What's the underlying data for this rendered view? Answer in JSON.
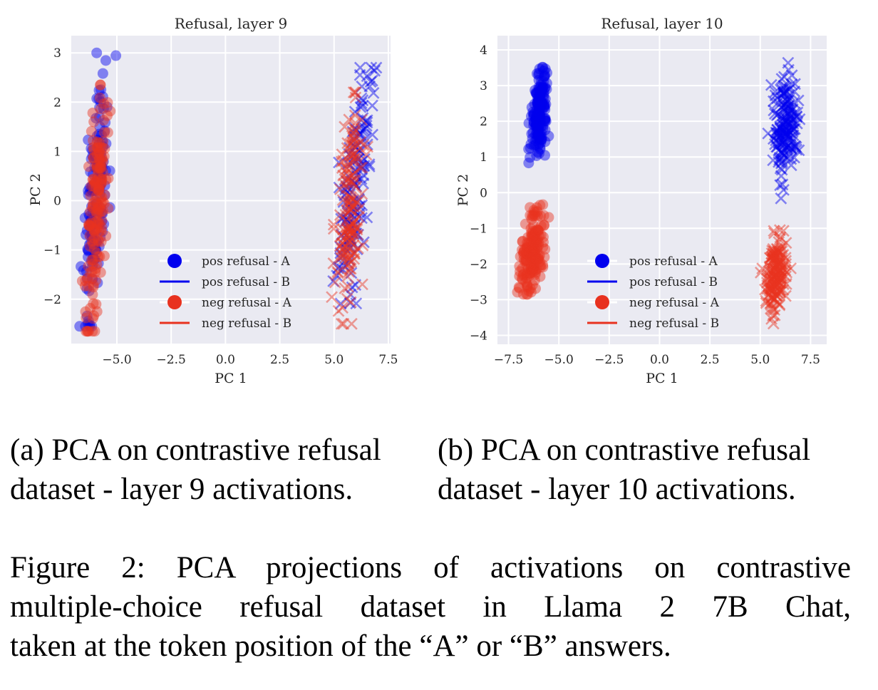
{
  "figure": {
    "subcaptions": [
      [
        "(a) PCA on contrastive refusal",
        "dataset - layer 9 activations."
      ],
      [
        "(b) PCA on contrastive refusal",
        "dataset - layer 10 activations."
      ]
    ],
    "caption_lines": [
      "Figure 2: PCA projections of activations on contrastive",
      "multiple-choice refusal dataset in Llama 2 7B Chat,",
      "taken at the token position of the “A” or “B” answers."
    ]
  },
  "colors": {
    "pos": "#0000ee",
    "neg": "#e8321f",
    "background": "#eaeaf2",
    "grid": "#ffffff"
  },
  "chart_data": [
    {
      "type": "scatter",
      "title": "Refusal, layer 9",
      "xlabel": "PC 1",
      "ylabel": "PC 2",
      "xlim": [
        -7.1,
        7.6
      ],
      "ylim": [
        -2.9,
        3.35
      ],
      "xticks": [
        -5.0,
        -2.5,
        0.0,
        2.5,
        5.0,
        7.5
      ],
      "xtick_labels": [
        "−5.0",
        "−2.5",
        "0.0",
        "2.5",
        "5.0",
        "7.5"
      ],
      "yticks": [
        -2,
        -1,
        0,
        1,
        2,
        3
      ],
      "ytick_labels": [
        "−2",
        "−1",
        "0",
        "1",
        "2",
        "3"
      ],
      "grid": true,
      "legend_position": "lower-center",
      "legend": [
        {
          "label": "pos refusal - A",
          "marker": "circle",
          "series": "pos"
        },
        {
          "label": "pos refusal - B",
          "marker": "line",
          "series": "pos"
        },
        {
          "label": "neg refusal - A",
          "marker": "circle",
          "series": "neg"
        },
        {
          "label": "neg refusal - B",
          "marker": "line",
          "series": "neg"
        }
      ],
      "series": [
        {
          "name": "pos refusal - A",
          "color": "pos",
          "marker": "o",
          "n": 150,
          "x_mean": -5.95,
          "x_sd": 0.22,
          "y_mean": 0.1,
          "y_sd": 1.25,
          "slope": 0.12,
          "y_min": -2.55,
          "y_max": 3.0,
          "seed": 11
        },
        {
          "name": "neg refusal - A",
          "color": "neg",
          "marker": "o",
          "n": 160,
          "x_mean": -5.9,
          "x_sd": 0.22,
          "y_mean": -0.05,
          "y_sd": 1.1,
          "slope": 0.12,
          "y_min": -2.65,
          "y_max": 2.35,
          "seed": 12
        },
        {
          "name": "pos refusal - B",
          "color": "pos",
          "marker": "x",
          "n": 150,
          "x_mean": 5.95,
          "x_sd": 0.3,
          "y_mean": 0.15,
          "y_sd": 1.15,
          "slope": 0.18,
          "y_min": -2.2,
          "y_max": 2.7,
          "seed": 13
        },
        {
          "name": "neg refusal - B",
          "color": "neg",
          "marker": "x",
          "n": 160,
          "x_mean": 5.75,
          "x_sd": 0.3,
          "y_mean": -0.1,
          "y_sd": 1.05,
          "slope": 0.18,
          "y_min": -2.5,
          "y_max": 2.2,
          "seed": 14
        }
      ]
    },
    {
      "type": "scatter",
      "title": "Refusal, layer 10",
      "xlabel": "PC 1",
      "ylabel": "PC 2",
      "xlim": [
        -8.05,
        8.3
      ],
      "ylim": [
        -4.25,
        4.4
      ],
      "xticks": [
        -7.5,
        -5.0,
        -2.5,
        0.0,
        2.5,
        5.0,
        7.5
      ],
      "xtick_labels": [
        "−7.5",
        "−5.0",
        "−2.5",
        "0.0",
        "2.5",
        "5.0",
        "7.5"
      ],
      "yticks": [
        -4,
        -3,
        -2,
        -1,
        0,
        1,
        2,
        3,
        4
      ],
      "ytick_labels": [
        "−4",
        "−3",
        "−2",
        "−1",
        "0",
        "1",
        "2",
        "3",
        "4"
      ],
      "grid": true,
      "legend_position": "lower-center",
      "legend": [
        {
          "label": "pos refusal - A",
          "marker": "circle",
          "series": "pos"
        },
        {
          "label": "pos refusal - B",
          "marker": "line",
          "series": "pos"
        },
        {
          "label": "neg refusal - A",
          "marker": "circle",
          "series": "neg"
        },
        {
          "label": "neg refusal - B",
          "marker": "line",
          "series": "neg"
        }
      ],
      "series": [
        {
          "name": "pos refusal - A",
          "color": "pos",
          "marker": "o",
          "n": 170,
          "x_mean": -5.95,
          "x_sd": 0.2,
          "y_mean": 2.2,
          "y_sd": 0.65,
          "slope": 0.1,
          "y_min": 0.3,
          "y_max": 3.55,
          "seed": 21
        },
        {
          "name": "neg refusal - A",
          "color": "neg",
          "marker": "o",
          "n": 170,
          "x_mean": -6.3,
          "x_sd": 0.25,
          "y_mean": -1.7,
          "y_sd": 0.6,
          "slope": 0.2,
          "y_min": -2.85,
          "y_max": 0.55,
          "seed": 22
        },
        {
          "name": "pos refusal - B",
          "color": "pos",
          "marker": "x",
          "n": 170,
          "x_mean": 6.25,
          "x_sd": 0.3,
          "y_mean": 1.9,
          "y_sd": 0.75,
          "slope": 0.05,
          "y_min": -0.8,
          "y_max": 3.95,
          "seed": 23
        },
        {
          "name": "neg refusal - B",
          "color": "neg",
          "marker": "x",
          "n": 170,
          "x_mean": 5.75,
          "x_sd": 0.28,
          "y_mean": -2.3,
          "y_sd": 0.55,
          "slope": 0.15,
          "y_min": -3.8,
          "y_max": -1.05,
          "seed": 24
        }
      ]
    }
  ]
}
